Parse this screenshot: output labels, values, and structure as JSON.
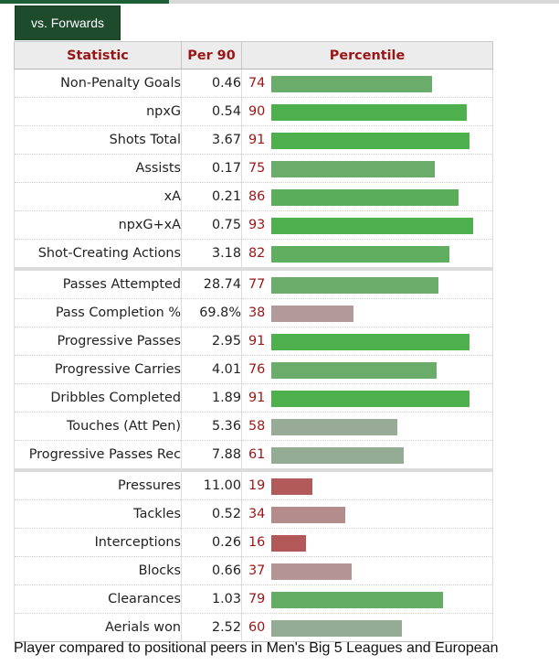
{
  "tab": {
    "label": "vs. Forwards"
  },
  "table": {
    "headers": [
      "Statistic",
      "Per 90",
      "Percentile"
    ],
    "rows": [
      {
        "stat": "Non-Penalty Goals",
        "per90": "0.46",
        "pct": "74",
        "group": 1,
        "color": "#6aad6a"
      },
      {
        "stat": "npxG",
        "per90": "0.54",
        "pct": "90",
        "group": 1,
        "color": "#4db04d"
      },
      {
        "stat": "Shots Total",
        "per90": "3.67",
        "pct": "91",
        "group": 1,
        "color": "#4db04d"
      },
      {
        "stat": "Assists",
        "per90": "0.17",
        "pct": "75",
        "group": 1,
        "color": "#6aad6a"
      },
      {
        "stat": "xA",
        "per90": "0.21",
        "pct": "86",
        "group": 1,
        "color": "#5aae5a"
      },
      {
        "stat": "npxG+xA",
        "per90": "0.75",
        "pct": "93",
        "group": 1,
        "color": "#4db04d"
      },
      {
        "stat": "Shot-Creating Actions",
        "per90": "3.18",
        "pct": "82",
        "group": 1,
        "color": "#60ae60"
      },
      {
        "stat": "Passes Attempted",
        "per90": "28.74",
        "pct": "77",
        "group": 2,
        "color": "#6aad6a"
      },
      {
        "stat": "Pass Completion %",
        "per90": "69.8%",
        "pct": "38",
        "group": 2,
        "color": "#b39a9a"
      },
      {
        "stat": "Progressive Passes",
        "per90": "2.95",
        "pct": "91",
        "group": 2,
        "color": "#4db04d"
      },
      {
        "stat": "Progressive Carries",
        "per90": "4.01",
        "pct": "76",
        "group": 2,
        "color": "#6aad6a"
      },
      {
        "stat": "Dribbles Completed",
        "per90": "1.89",
        "pct": "91",
        "group": 2,
        "color": "#4db04d"
      },
      {
        "stat": "Touches (Att Pen)",
        "per90": "5.36",
        "pct": "58",
        "group": 2,
        "color": "#97ab97"
      },
      {
        "stat": "Progressive Passes Rec",
        "per90": "7.88",
        "pct": "61",
        "group": 2,
        "color": "#94ac94"
      },
      {
        "stat": "Pressures",
        "per90": "11.00",
        "pct": "19",
        "group": 3,
        "color": "#b25a5a"
      },
      {
        "stat": "Tackles",
        "per90": "0.52",
        "pct": "34",
        "group": 3,
        "color": "#b48c8c"
      },
      {
        "stat": "Interceptions",
        "per90": "0.26",
        "pct": "16",
        "group": 3,
        "color": "#b35858"
      },
      {
        "stat": "Blocks",
        "per90": "0.66",
        "pct": "37",
        "group": 3,
        "color": "#b49494"
      },
      {
        "stat": "Clearances",
        "per90": "1.03",
        "pct": "79",
        "group": 3,
        "color": "#64ad64"
      },
      {
        "stat": "Aerials won",
        "per90": "2.52",
        "pct": "60",
        "group": 3,
        "color": "#94ac94"
      }
    ]
  },
  "caption": "Player compared to positional peers in Men's Big 5 Leagues and European"
}
